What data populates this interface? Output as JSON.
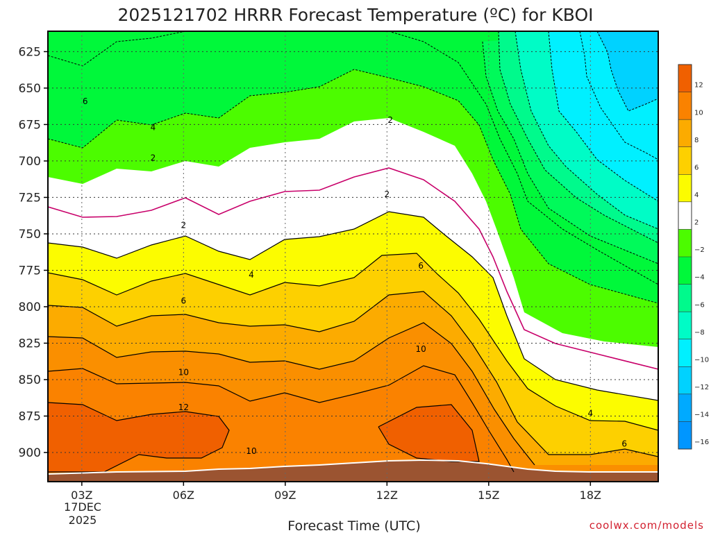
{
  "chart_data": {
    "type": "filled-contour",
    "title": "2025121702 HRRR Forecast Temperature (ºC) for KBOI",
    "xlabel": "Forecast Time (UTC)",
    "ylabel": "",
    "x_tick_labels": [
      "03Z",
      "06Z",
      "09Z",
      "12Z",
      "15Z",
      "18Z"
    ],
    "x_hours_utc": [
      3,
      6,
      9,
      12,
      15,
      18
    ],
    "x_range_hours": [
      2,
      20
    ],
    "x_date_label": [
      "17DEC",
      "2025"
    ],
    "y_ticks_hpa": [
      625,
      650,
      675,
      700,
      725,
      750,
      775,
      800,
      825,
      850,
      875,
      900
    ],
    "y_range_hpa": [
      611,
      920
    ],
    "y_inverted": true,
    "grid": true,
    "colorbar_ticks": [
      "12",
      "10",
      "8",
      "6",
      "4",
      "2",
      "−2",
      "−4",
      "−6",
      "−8",
      "−10",
      "−12",
      "−14",
      "−16"
    ],
    "colorbar_colors": [
      "#f06000",
      "#fa8200",
      "#fcab00",
      "#fdd000",
      "#fcfc00",
      "#ffffff",
      "#4cfc00",
      "#00f83a",
      "#00fa8c",
      "#00fcc6",
      "#00f0ff",
      "#00d2ff",
      "#00aaff",
      "#0096ff"
    ],
    "freezing_line_color": "#c8006a",
    "terrain_color": "#9b5431",
    "contour_labels": [
      {
        "text": "6",
        "t": 3.1,
        "p": 659
      },
      {
        "text": "4",
        "t": 5.1,
        "p": 677
      },
      {
        "text": "2",
        "t": 5.1,
        "p": 698
      },
      {
        "text": "2",
        "t": 12.1,
        "p": 672
      },
      {
        "text": "2",
        "t": 6.0,
        "p": 744
      },
      {
        "text": "2",
        "t": 12.0,
        "p": 723
      },
      {
        "text": "4",
        "t": 8.0,
        "p": 778
      },
      {
        "text": "6",
        "t": 13.0,
        "p": 772
      },
      {
        "text": "6",
        "t": 6.0,
        "p": 796
      },
      {
        "text": "10",
        "t": 6.0,
        "p": 845
      },
      {
        "text": "10",
        "t": 13.0,
        "p": 829
      },
      {
        "text": "12",
        "t": 6.0,
        "p": 869
      },
      {
        "text": "10",
        "t": 8.0,
        "p": 899
      },
      {
        "text": "4",
        "t": 18.0,
        "p": 873
      },
      {
        "text": "6",
        "t": 19.0,
        "p": 894
      }
    ],
    "credit": "coolwx.com/models"
  }
}
